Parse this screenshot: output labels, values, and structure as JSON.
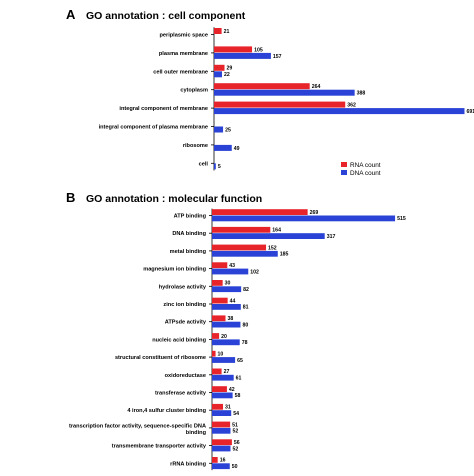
{
  "chart_data": [
    {
      "type": "bar",
      "orientation": "horizontal",
      "panel": "A",
      "title": "GO annotation : cell component",
      "categories": [
        "periplasmic space",
        "plasma membrane",
        "cell outer membrane",
        "cytoplasm",
        "integral component of membrane",
        "integral component of plasma membrane",
        "ribosome",
        "cell"
      ],
      "series": [
        {
          "name": "RNA count",
          "color": "#e8242b",
          "values": [
            21,
            105,
            29,
            264,
            362,
            null,
            null,
            null
          ]
        },
        {
          "name": "DNA count",
          "color": "#2a43d6",
          "values": [
            null,
            157,
            22,
            388,
            691,
            25,
            49,
            5
          ]
        }
      ],
      "legend": {
        "position": "right",
        "items": [
          "RNA count",
          "DNA count"
        ]
      },
      "grid": false
    },
    {
      "type": "bar",
      "orientation": "horizontal",
      "panel": "B",
      "title": "GO annotation : molecular function",
      "categories": [
        "ATP binding",
        "DNA binding",
        "metal binding",
        "magnesium ion binding",
        "hydrolase activity",
        "zinc ion binding",
        "ATPsde activity",
        "nucleic acid binding",
        "structural constituent of ribosome",
        "oxidoreductase",
        "transferase activity",
        "4 iron,4 sulfur cluster binding",
        "transcription factor activity, sequence-specific DNA binding",
        "transmembrane transporter activity",
        "rRNA binding"
      ],
      "series": [
        {
          "name": "RNA count",
          "color": "#e8242b",
          "values": [
            269,
            164,
            152,
            43,
            30,
            44,
            38,
            20,
            10,
            27,
            42,
            31,
            51,
            56,
            16
          ]
        },
        {
          "name": "DNA count",
          "color": "#2a43d6",
          "values": [
            515,
            317,
            185,
            102,
            82,
            81,
            80,
            78,
            65,
            61,
            58,
            54,
            52,
            52,
            50
          ]
        }
      ],
      "grid": false
    }
  ]
}
